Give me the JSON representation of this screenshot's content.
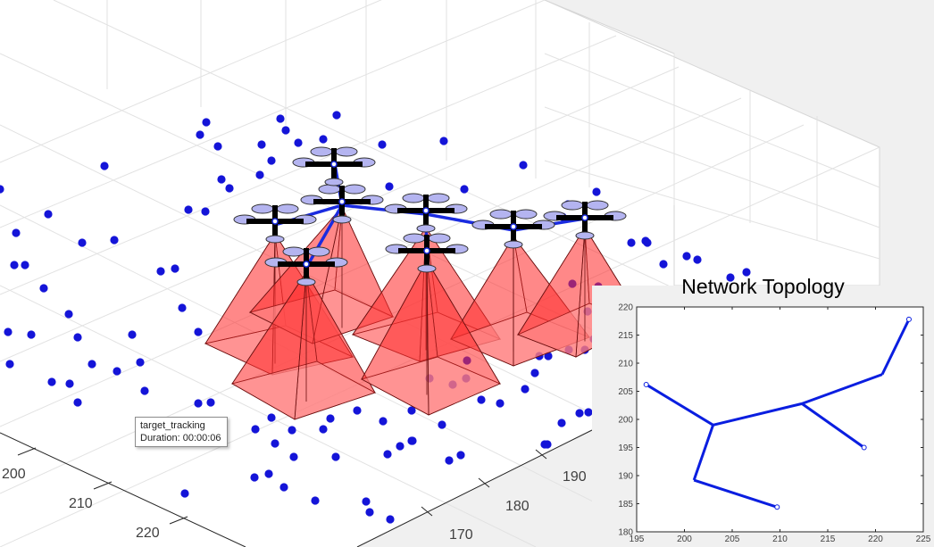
{
  "tooltip": {
    "name": "target_tracking",
    "duration_label": "Duration:",
    "duration_value": "00:00:06"
  },
  "main_plot": {
    "x_ticks": [
      "200",
      "210",
      "220"
    ],
    "y_ticks": [
      "190",
      "180",
      "170"
    ],
    "target_color": "#1414d8",
    "cone_color": "#ff3030",
    "link_color": "#1a2be0",
    "drone_color": "#000000"
  },
  "inset": {
    "title": "Network Topology",
    "line_color": "#0a1ee0"
  },
  "chart_data": {
    "type": "line",
    "title": "Network Topology",
    "xlabel": "",
    "ylabel": "",
    "xlim": [
      195,
      225
    ],
    "ylim": [
      180,
      220
    ],
    "x_ticks": [
      195,
      200,
      205,
      210,
      215,
      220,
      225
    ],
    "y_ticks": [
      180,
      185,
      190,
      195,
      200,
      205,
      210,
      215,
      220
    ],
    "nodes": [
      {
        "x": 196.0,
        "y": 206.2
      },
      {
        "x": 203.0,
        "y": 199.0
      },
      {
        "x": 201.0,
        "y": 189.2
      },
      {
        "x": 209.7,
        "y": 184.4
      },
      {
        "x": 212.3,
        "y": 202.8
      },
      {
        "x": 218.8,
        "y": 195.0
      },
      {
        "x": 220.7,
        "y": 208.0
      },
      {
        "x": 223.5,
        "y": 217.8
      }
    ],
    "edges": [
      [
        0,
        1
      ],
      [
        1,
        2
      ],
      [
        2,
        3
      ],
      [
        1,
        4
      ],
      [
        4,
        5
      ],
      [
        4,
        6
      ],
      [
        6,
        7
      ]
    ],
    "grid": false
  }
}
